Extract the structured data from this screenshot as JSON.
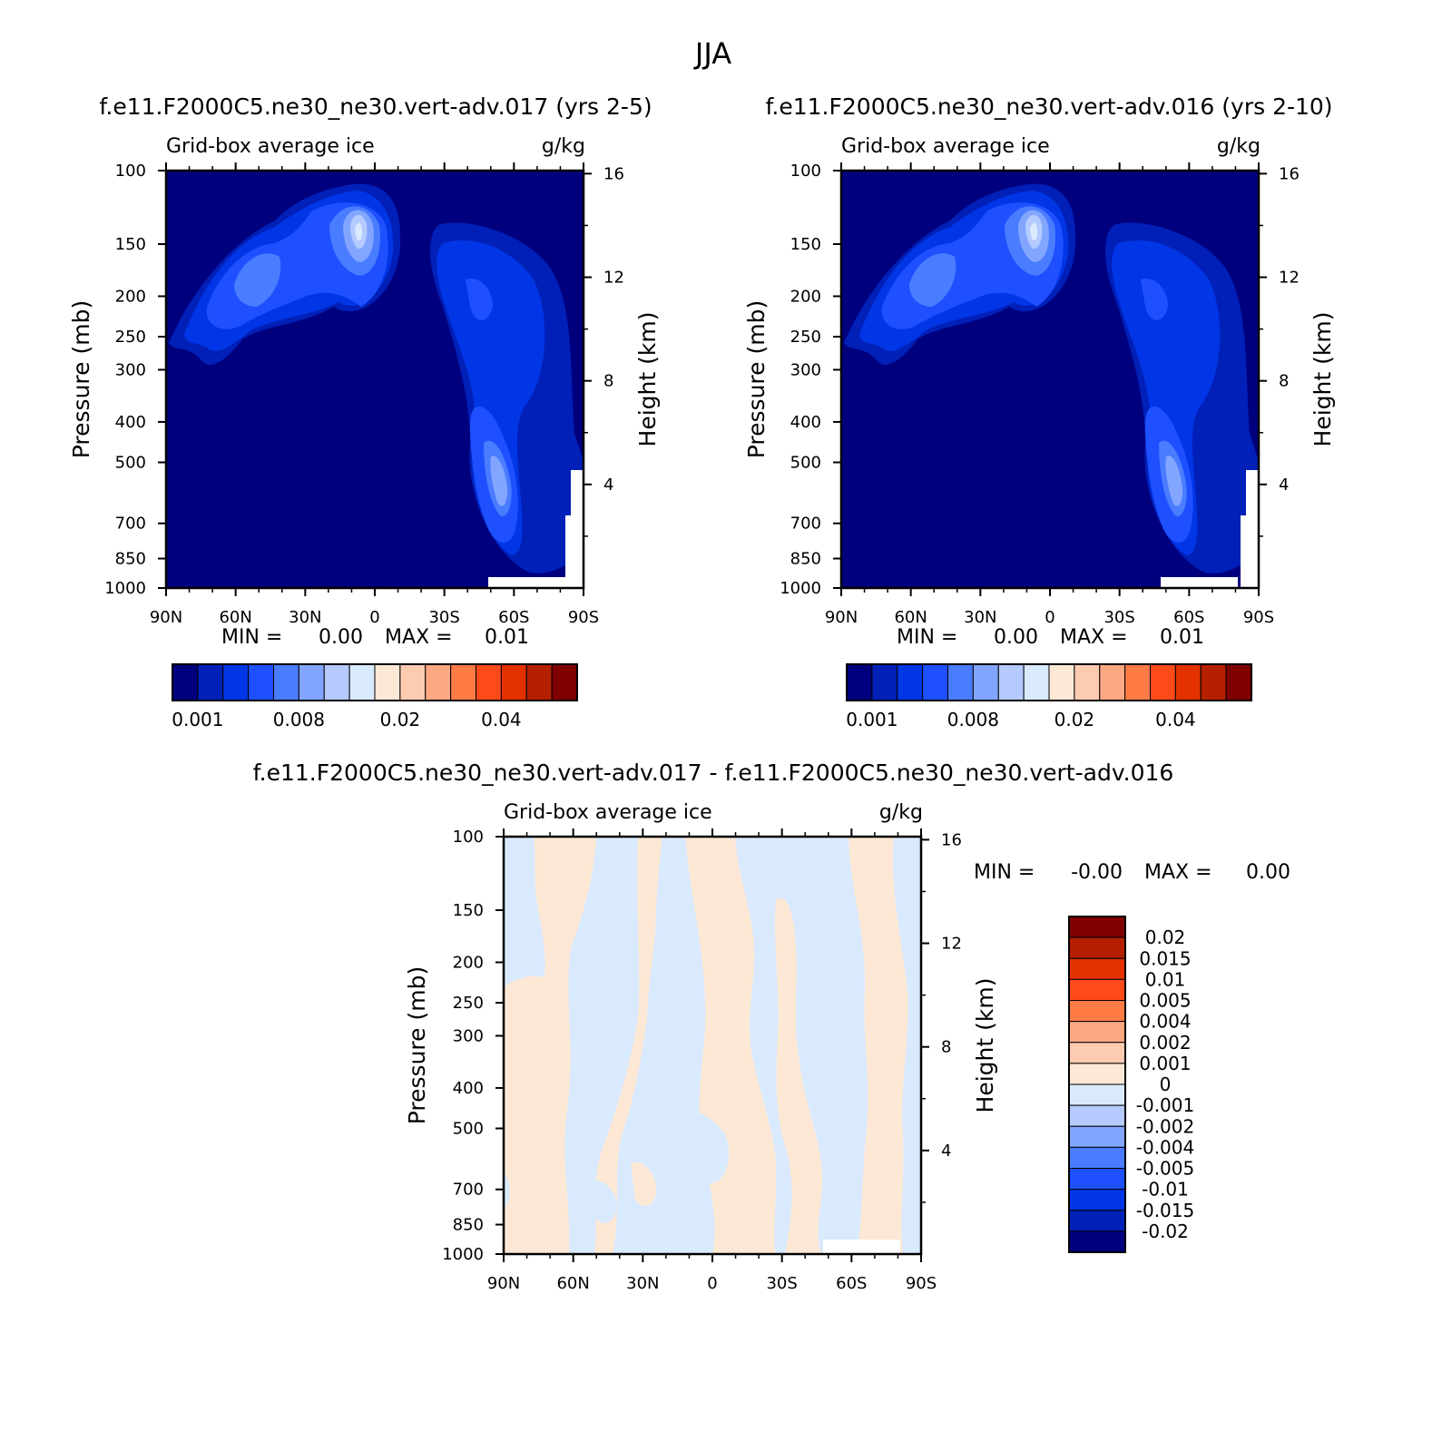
{
  "figure": {
    "title": "JJA"
  },
  "chart_data": [
    {
      "type": "heatmap",
      "case_title": "f.e11.F2000C5.ne30_ne30.vert-adv.017 (yrs 2-5)",
      "left_string": "Grid-box average ice",
      "right_string": "g/kg",
      "xlabel": "",
      "ylabel": "Pressure (mb)",
      "ylabel_right": "Height (km)",
      "x_ticks": [
        "90N",
        "60N",
        "30N",
        "0",
        "30S",
        "60S",
        "90S"
      ],
      "y_ticks": [
        "100",
        "150",
        "200",
        "250",
        "300",
        "400",
        "500",
        "700",
        "850",
        "1000"
      ],
      "y_right_ticks": [
        "16",
        "12",
        "8",
        "4"
      ],
      "min_label": "MIN =",
      "min_value": "0.00",
      "max_label": "MAX =",
      "max_value": "0.01",
      "colorbar_labels": [
        "0.001",
        "0.008",
        "0.02",
        "0.04"
      ],
      "grid": false
    },
    {
      "type": "heatmap",
      "case_title": "f.e11.F2000C5.ne30_ne30.vert-adv.016 (yrs 2-10)",
      "left_string": "Grid-box average ice",
      "right_string": "g/kg",
      "xlabel": "",
      "ylabel": "Pressure (mb)",
      "ylabel_right": "Height (km)",
      "x_ticks": [
        "90N",
        "60N",
        "30N",
        "0",
        "30S",
        "60S",
        "90S"
      ],
      "y_ticks": [
        "100",
        "150",
        "200",
        "250",
        "300",
        "400",
        "500",
        "700",
        "850",
        "1000"
      ],
      "y_right_ticks": [
        "16",
        "12",
        "8",
        "4"
      ],
      "min_label": "MIN =",
      "min_value": "0.00",
      "max_label": "MAX =",
      "max_value": "0.01",
      "colorbar_labels": [
        "0.001",
        "0.008",
        "0.02",
        "0.04"
      ],
      "grid": false
    },
    {
      "type": "heatmap",
      "case_title": "f.e11.F2000C5.ne30_ne30.vert-adv.017 - f.e11.F2000C5.ne30_ne30.vert-adv.016",
      "left_string": "Grid-box average ice",
      "right_string": "g/kg",
      "xlabel": "",
      "ylabel": "Pressure (mb)",
      "ylabel_right": "Height (km)",
      "x_ticks": [
        "90N",
        "60N",
        "30N",
        "0",
        "30S",
        "60S",
        "90S"
      ],
      "y_ticks": [
        "100",
        "150",
        "200",
        "250",
        "300",
        "400",
        "500",
        "700",
        "850",
        "1000"
      ],
      "y_right_ticks": [
        "16",
        "12",
        "8",
        "4"
      ],
      "min_label": "MIN =",
      "min_value": "-0.00",
      "max_label": "MAX =",
      "max_value": "0.00",
      "colorbar_labels": [
        "0.02",
        "0.015",
        "0.01",
        "0.005",
        "0.004",
        "0.002",
        "0.001",
        "0",
        "-0.001",
        "-0.002",
        "-0.004",
        "-0.005",
        "-0.01",
        "-0.015",
        "-0.02"
      ],
      "grid": false
    }
  ],
  "colors": {
    "scale_abs": [
      "#00007f",
      "#0020b8",
      "#0036e6",
      "#1e50ff",
      "#4a7cff",
      "#82a6ff",
      "#b5caff",
      "#d9eaff",
      "#fde8d5",
      "#fdcbb0",
      "#fca882",
      "#ff7b45",
      "#ff4a1a",
      "#e33200",
      "#b51f00",
      "#7f0000"
    ],
    "scale_diff": [
      "#00007f",
      "#0020b8",
      "#0036e6",
      "#1e50ff",
      "#4a7cff",
      "#82a6ff",
      "#b5caff",
      "#d9eaff",
      "#fde8d5",
      "#fdcbb0",
      "#fca882",
      "#ff7b45",
      "#ff4a1a",
      "#e33200",
      "#b51f00",
      "#7f0000"
    ]
  }
}
